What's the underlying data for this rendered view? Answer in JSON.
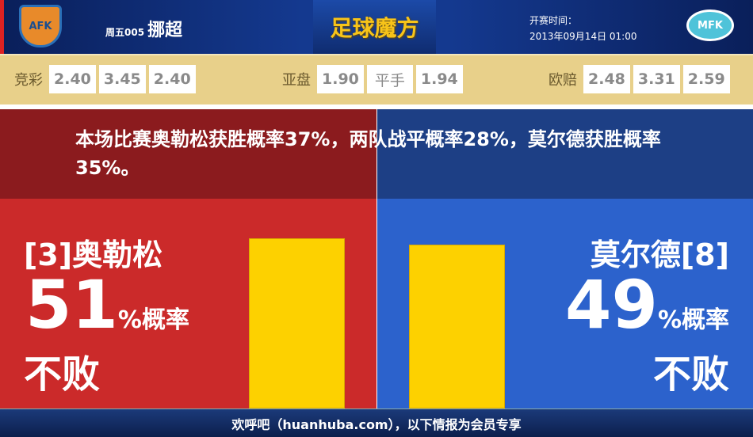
{
  "header": {
    "league_code": "周五005",
    "league_name": "挪超",
    "brand": "足球魔方",
    "kickoff_label": "开赛时间：",
    "kickoff_time": "2013年09月14日 01:00",
    "home_logo_text": "AFK",
    "away_logo_text": "MFK"
  },
  "odds": {
    "jingcai": {
      "label": "竞彩",
      "values": [
        "2.40",
        "3.45",
        "2.40"
      ]
    },
    "yapan": {
      "label": "亚盘",
      "values": [
        "1.90",
        "平手",
        "1.94"
      ]
    },
    "oupei": {
      "label": "欧赔",
      "values": [
        "2.48",
        "3.31",
        "2.59"
      ]
    }
  },
  "summary": "本场比赛奥勒松获胜概率37%，两队战平概率28%，莫尔德获胜概率35%。",
  "home": {
    "team": "[3]奥勒松",
    "percent": 51,
    "unit": "%概率",
    "label": "不败",
    "color": "#cb2a2a"
  },
  "away": {
    "team": "莫尔德[8]",
    "percent": 49,
    "unit": "%概率",
    "label": "不败",
    "color": "#2c62cc"
  },
  "bar_color": "#fdd100",
  "footer": "欢呼吧（huanhuba.com），以下情报为会员专享"
}
